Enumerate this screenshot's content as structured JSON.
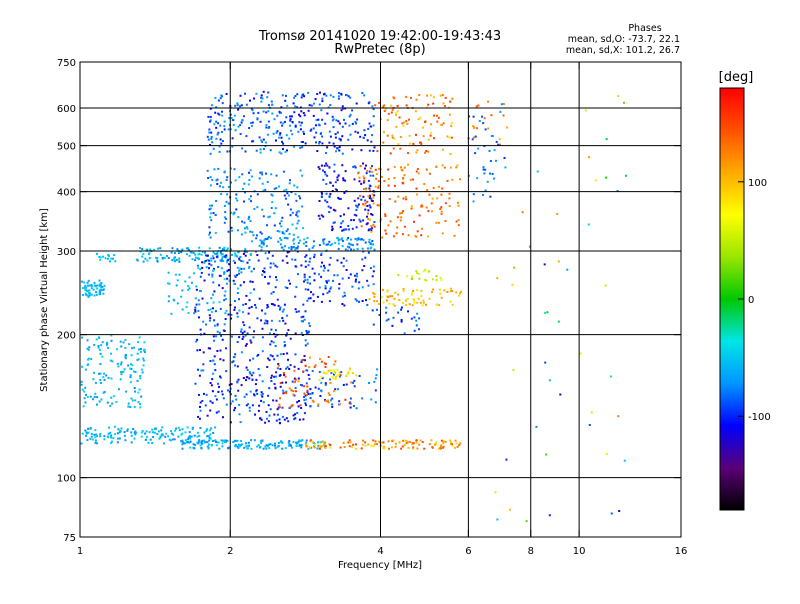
{
  "chart_data": {
    "type": "scatter",
    "title": "Tromsø 20141020 19:42:00-19:43:43",
    "subtitle": "RwPretec (8p)",
    "xlabel": "Frequency [MHz]",
    "ylabel": "Stationary phase Virtual Height [km]",
    "x_scale": "log",
    "y_scale": "log",
    "xlim": [
      1,
      16
    ],
    "ylim": [
      75,
      750
    ],
    "x_ticks": [
      1,
      2,
      4,
      6,
      8,
      10,
      16
    ],
    "y_ticks": [
      75,
      100,
      200,
      300,
      400,
      500,
      600,
      750
    ],
    "x_grid": [
      2,
      4,
      6,
      8,
      10
    ],
    "y_grid": [
      100,
      200,
      300,
      400,
      500,
      600
    ],
    "stats": {
      "header": "Phases",
      "line_o": "mean, sd,O: -73.7, 22.1",
      "line_x": "mean, sd,X: 101.2, 26.7"
    },
    "colorbar": {
      "label": "[deg]",
      "range": [
        -180,
        180
      ],
      "ticks": [
        100,
        0,
        -100
      ],
      "colors": [
        "#000000",
        "#5a0078",
        "#0000ff",
        "#0096ff",
        "#00e6e6",
        "#00c800",
        "#9be600",
        "#ffff00",
        "#ffaa00",
        "#ff5000",
        "#ff0000"
      ]
    },
    "clusters": [
      {
        "f": [
          1.0,
          1.12
        ],
        "h": [
          240,
          260
        ],
        "phase": [
          -70,
          -45
        ],
        "n": 60
      },
      {
        "f": [
          1.05,
          1.18
        ],
        "h": [
          285,
          300
        ],
        "phase": [
          -60,
          -40
        ],
        "n": 14
      },
      {
        "f": [
          1.0,
          1.35
        ],
        "h": [
          140,
          200
        ],
        "phase": [
          -75,
          -40
        ],
        "n": 150
      },
      {
        "f": [
          1.0,
          1.9
        ],
        "h": [
          118,
          128
        ],
        "phase": [
          -75,
          -40
        ],
        "n": 150
      },
      {
        "f": [
          1.6,
          3.1
        ],
        "h": [
          115,
          120
        ],
        "phase": [
          -80,
          -40
        ],
        "n": 150
      },
      {
        "f": [
          2.8,
          5.8
        ],
        "h": [
          115,
          120
        ],
        "phase": [
          80,
          160
        ],
        "n": 120
      },
      {
        "f": [
          1.3,
          2.2
        ],
        "h": [
          285,
          305
        ],
        "phase": [
          -80,
          -40
        ],
        "n": 110
      },
      {
        "f": [
          2.2,
          3.9
        ],
        "h": [
          300,
          320
        ],
        "phase": [
          -90,
          -50
        ],
        "n": 110
      },
      {
        "f": [
          1.7,
          2.9
        ],
        "h": [
          130,
          300
        ],
        "phase": [
          -130,
          -70
        ],
        "n": 500
      },
      {
        "f": [
          1.5,
          2.2
        ],
        "h": [
          220,
          300
        ],
        "phase": [
          -70,
          -40
        ],
        "n": 80
      },
      {
        "f": [
          1.8,
          2.8
        ],
        "h": [
          320,
          450
        ],
        "phase": [
          -100,
          -50
        ],
        "n": 170
      },
      {
        "f": [
          1.8,
          2.7
        ],
        "h": [
          480,
          650
        ],
        "phase": [
          -110,
          -60
        ],
        "n": 180
      },
      {
        "f": [
          2.7,
          3.9
        ],
        "h": [
          480,
          650
        ],
        "phase": [
          -120,
          -70
        ],
        "n": 150
      },
      {
        "f": [
          3.0,
          3.9
        ],
        "h": [
          330,
          460
        ],
        "phase": [
          -130,
          -80
        ],
        "n": 140
      },
      {
        "f": [
          2.8,
          3.9
        ],
        "h": [
          230,
          300
        ],
        "phase": [
          -120,
          -70
        ],
        "n": 90
      },
      {
        "f": [
          2.8,
          4.0
        ],
        "h": [
          140,
          170
        ],
        "phase": [
          -110,
          -60
        ],
        "n": 60
      },
      {
        "f": [
          2.5,
          3.5
        ],
        "h": [
          140,
          180
        ],
        "phase": [
          110,
          170
        ],
        "n": 60
      },
      {
        "f": [
          3.0,
          3.6
        ],
        "h": [
          160,
          170
        ],
        "phase": [
          60,
          100
        ],
        "n": 25
      },
      {
        "f": [
          3.6,
          5.8
        ],
        "h": [
          320,
          460
        ],
        "phase": [
          100,
          160
        ],
        "n": 150
      },
      {
        "f": [
          3.9,
          5.6
        ],
        "h": [
          480,
          640
        ],
        "phase": [
          80,
          160
        ],
        "n": 100
      },
      {
        "f": [
          3.8,
          5.8
        ],
        "h": [
          230,
          250
        ],
        "phase": [
          80,
          120
        ],
        "n": 70
      },
      {
        "f": [
          4.3,
          5.3
        ],
        "h": [
          260,
          275
        ],
        "phase": [
          30,
          70
        ],
        "n": 20
      },
      {
        "f": [
          3.8,
          4.8
        ],
        "h": [
          200,
          230
        ],
        "phase": [
          -110,
          -70
        ],
        "n": 25
      },
      {
        "f": [
          6.0,
          6.9
        ],
        "h": [
          380,
          580
        ],
        "phase": [
          -100,
          -60
        ],
        "n": 35
      },
      {
        "f": [
          6.1,
          7.2
        ],
        "h": [
          500,
          620
        ],
        "phase": [
          100,
          150
        ],
        "n": 15
      },
      {
        "f": [
          6.8,
          12.5
        ],
        "h": [
          80,
          640
        ],
        "phase": [
          -130,
          130
        ],
        "n": 50
      }
    ]
  }
}
